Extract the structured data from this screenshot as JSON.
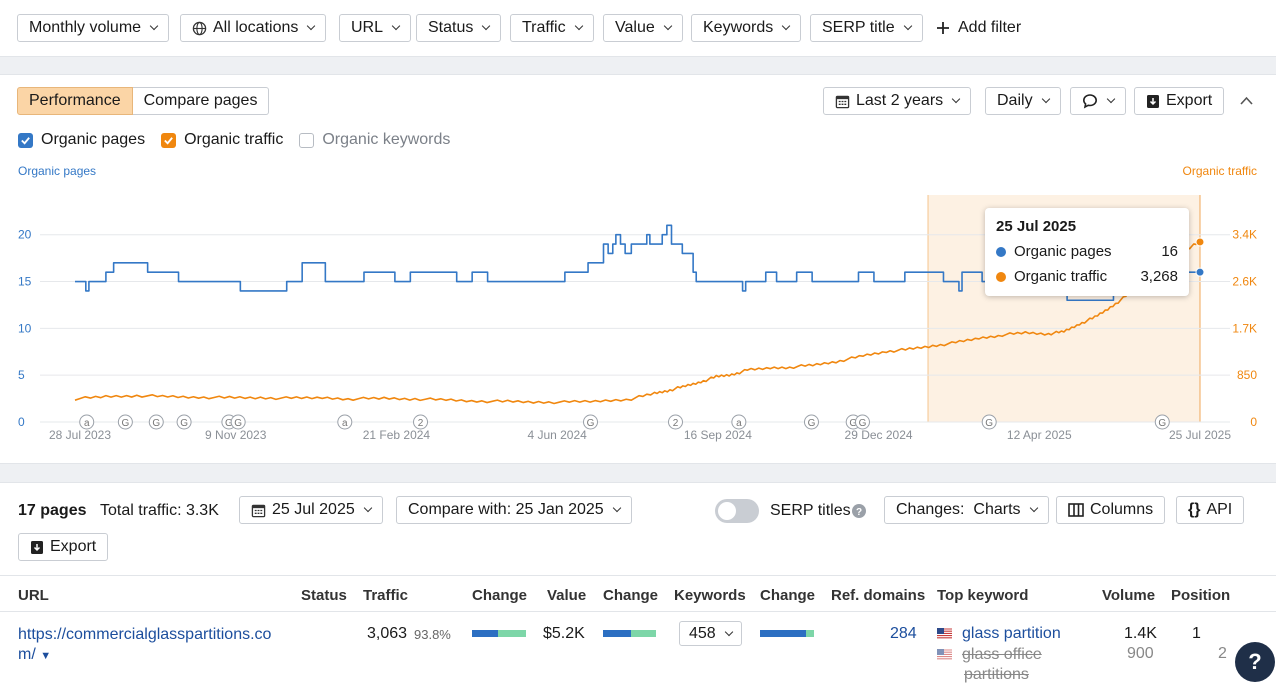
{
  "filters": {
    "items": [
      "Monthly volume",
      "All locations",
      "URL",
      "Status",
      "Traffic",
      "Value",
      "Keywords",
      "SERP title"
    ],
    "add_filter": "Add filter"
  },
  "panel": {
    "tabs": [
      "Performance",
      "Compare pages"
    ],
    "date_range": "Last 2 years",
    "granularity": "Daily",
    "export": "Export",
    "checkboxes": [
      {
        "label": "Organic pages",
        "checked": true,
        "color": "#3478c6"
      },
      {
        "label": "Organic traffic",
        "checked": true,
        "color": "#f0870f"
      },
      {
        "label": "Organic keywords",
        "checked": false,
        "color": "#b7bcc3"
      }
    ]
  },
  "chart_data": {
    "type": "line",
    "left_axis_label": "Organic pages",
    "right_axis_label": "Organic traffic",
    "left_ticks": [
      "0",
      "5",
      "10",
      "15",
      "20"
    ],
    "left_tick_values": [
      0,
      5,
      10,
      15,
      20
    ],
    "right_ticks": [
      "0",
      "850",
      "1.7K",
      "2.6K",
      "3.4K"
    ],
    "right_tick_values": [
      0,
      850,
      1700,
      2550,
      3400
    ],
    "x_ticks": [
      "28 Jul 2023",
      "9 Nov 2023",
      "21 Feb 2024",
      "4 Jun 2024",
      "16 Sep 2024",
      "29 Dec 2024",
      "12 Apr 2025",
      "25 Jul 2025"
    ],
    "x_range_days": [
      0,
      728
    ],
    "highlight_range_days": [
      552,
      728
    ],
    "series": [
      {
        "name": "Organic pages",
        "color": "#3478c6",
        "points": [
          [
            0,
            15
          ],
          [
            5,
            15
          ],
          [
            7,
            14
          ],
          [
            9,
            15
          ],
          [
            15,
            15
          ],
          [
            20,
            16
          ],
          [
            25,
            17
          ],
          [
            45,
            17
          ],
          [
            47,
            16
          ],
          [
            65,
            16
          ],
          [
            67,
            15
          ],
          [
            105,
            15
          ],
          [
            107,
            14
          ],
          [
            135,
            14
          ],
          [
            137,
            15
          ],
          [
            145,
            15
          ],
          [
            147,
            17
          ],
          [
            160,
            17
          ],
          [
            162,
            15
          ],
          [
            185,
            15
          ],
          [
            187,
            16
          ],
          [
            205,
            16
          ],
          [
            207,
            15
          ],
          [
            215,
            15
          ],
          [
            217,
            16
          ],
          [
            245,
            16
          ],
          [
            247,
            15
          ],
          [
            255,
            15
          ],
          [
            257,
            16
          ],
          [
            265,
            16
          ],
          [
            267,
            15
          ],
          [
            315,
            15
          ],
          [
            317,
            16
          ],
          [
            330,
            16
          ],
          [
            332,
            17
          ],
          [
            340,
            17
          ],
          [
            342,
            19
          ],
          [
            345,
            18
          ],
          [
            348,
            19
          ],
          [
            350,
            20
          ],
          [
            353,
            19
          ],
          [
            356,
            18
          ],
          [
            360,
            19
          ],
          [
            368,
            19
          ],
          [
            370,
            20
          ],
          [
            372,
            19
          ],
          [
            378,
            19
          ],
          [
            380,
            20
          ],
          [
            383,
            21
          ],
          [
            386,
            19
          ],
          [
            390,
            19
          ],
          [
            393,
            18
          ],
          [
            398,
            18
          ],
          [
            400,
            16
          ],
          [
            402,
            15
          ],
          [
            430,
            15
          ],
          [
            432,
            14
          ],
          [
            434,
            15
          ],
          [
            445,
            15
          ],
          [
            447,
            16
          ],
          [
            452,
            16
          ],
          [
            454,
            15
          ],
          [
            465,
            15
          ],
          [
            467,
            16
          ],
          [
            475,
            16
          ],
          [
            477,
            15
          ],
          [
            505,
            15
          ],
          [
            507,
            16
          ],
          [
            515,
            16
          ],
          [
            517,
            15
          ],
          [
            535,
            15
          ],
          [
            537,
            16
          ],
          [
            560,
            16
          ],
          [
            562,
            15
          ],
          [
            570,
            15
          ],
          [
            572,
            14
          ],
          [
            574,
            16
          ],
          [
            585,
            16
          ],
          [
            587,
            15
          ],
          [
            595,
            15
          ],
          [
            597,
            16
          ],
          [
            620,
            16
          ],
          [
            622,
            15
          ],
          [
            640,
            15
          ],
          [
            642,
            13
          ],
          [
            670,
            13
          ],
          [
            672,
            16
          ],
          [
            728,
            16
          ]
        ]
      },
      {
        "name": "Organic traffic",
        "color": "#f0870f",
        "points": [
          [
            0,
            420
          ],
          [
            20,
            460
          ],
          [
            40,
            480
          ],
          [
            60,
            460
          ],
          [
            80,
            450
          ],
          [
            100,
            440
          ],
          [
            120,
            440
          ],
          [
            140,
            430
          ],
          [
            160,
            440
          ],
          [
            180,
            420
          ],
          [
            200,
            430
          ],
          [
            220,
            420
          ],
          [
            240,
            400
          ],
          [
            260,
            380
          ],
          [
            280,
            370
          ],
          [
            300,
            360
          ],
          [
            320,
            360
          ],
          [
            340,
            380
          ],
          [
            360,
            420
          ],
          [
            375,
            520
          ],
          [
            385,
            580
          ],
          [
            395,
            650
          ],
          [
            405,
            730
          ],
          [
            415,
            820
          ],
          [
            425,
            860
          ],
          [
            435,
            940
          ],
          [
            450,
            980
          ],
          [
            465,
            1000
          ],
          [
            480,
            1040
          ],
          [
            495,
            1110
          ],
          [
            510,
            1200
          ],
          [
            525,
            1280
          ],
          [
            540,
            1320
          ],
          [
            555,
            1380
          ],
          [
            570,
            1440
          ],
          [
            585,
            1520
          ],
          [
            600,
            1580
          ],
          [
            615,
            1620
          ],
          [
            630,
            1600
          ],
          [
            640,
            1640
          ],
          [
            650,
            1780
          ],
          [
            660,
            1900
          ],
          [
            670,
            2080
          ],
          [
            680,
            2280
          ],
          [
            690,
            2500
          ],
          [
            700,
            2700
          ],
          [
            710,
            2950
          ],
          [
            720,
            3150
          ],
          [
            728,
            3268
          ]
        ]
      }
    ],
    "tooltip": {
      "date": "25 Jul 2025",
      "pages": "16",
      "traffic": "3,268"
    },
    "annotations": [
      {
        "day": 5,
        "label": "a"
      },
      {
        "day": 30,
        "label": "G"
      },
      {
        "day": 50,
        "label": "G"
      },
      {
        "day": 68,
        "label": "G"
      },
      {
        "day": 97,
        "label": "G"
      },
      {
        "day": 103,
        "label": "G"
      },
      {
        "day": 172,
        "label": "a"
      },
      {
        "day": 221,
        "label": "2"
      },
      {
        "day": 331,
        "label": "G"
      },
      {
        "day": 386,
        "label": "2"
      },
      {
        "day": 427,
        "label": "a"
      },
      {
        "day": 474,
        "label": "G"
      },
      {
        "day": 501,
        "label": "G"
      },
      {
        "day": 507,
        "label": "G"
      },
      {
        "day": 589,
        "label": "G"
      },
      {
        "day": 701,
        "label": "G"
      }
    ]
  },
  "table_bar": {
    "pages": "17 pages",
    "total_traffic": "Total traffic: 3.3K",
    "date": "25 Jul 2025",
    "compare": "Compare with: 25 Jan 2025",
    "serp_titles": "SERP titles",
    "changes": "Changes:  Charts",
    "columns": "Columns",
    "api": "API",
    "export": "Export"
  },
  "table": {
    "headers": [
      "URL",
      "Status",
      "Traffic",
      "Change",
      "Value",
      "Change",
      "Keywords",
      "Change",
      "Ref. domains",
      "Top keyword",
      "Volume",
      "Position"
    ],
    "rows": [
      {
        "url_line1": "https://commercialglasspartitions.co",
        "url_line2": "m/",
        "traffic": "3,063",
        "traffic_pct": "93.8%",
        "value": "$5.2K",
        "keywords": "458",
        "ref_domains": "284",
        "top_keyword": "glass partition",
        "volume": "1.4K",
        "position": "1",
        "second_keyword_line1": "glass office",
        "second_keyword_line2": "partitions",
        "second_volume": "900",
        "second_position": "2"
      }
    ]
  },
  "help": "?"
}
